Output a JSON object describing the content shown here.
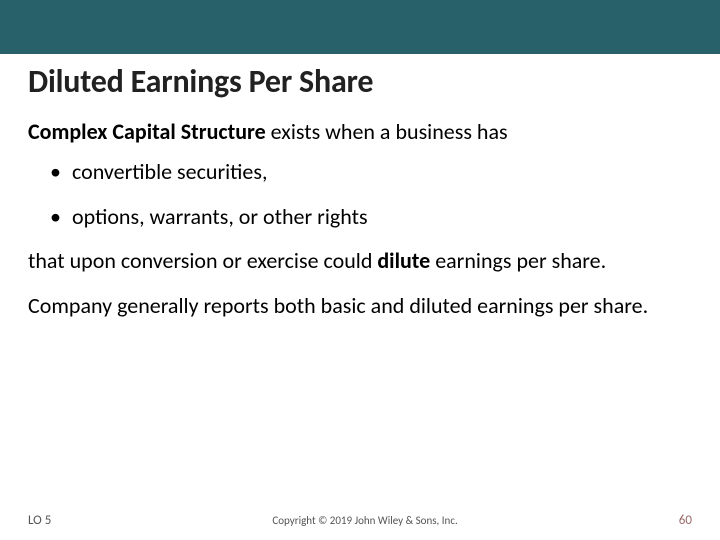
{
  "colors": {
    "topbar": "#28616a",
    "background": "#ffffff",
    "title": "#212121",
    "body_text": "#000000",
    "footer_text": "#555555",
    "pageno_text": "#9a6a6a"
  },
  "typography": {
    "title_pt": 32,
    "body_pt": 22,
    "footer_pt": 11,
    "font_family": "Calibri"
  },
  "title": "Diluted Earnings Per Share",
  "intro_lead_bold": "Complex Capital Structure",
  "intro_rest": " exists when a business has",
  "bullets": [
    "convertible securities,",
    "options, warrants, or other rights"
  ],
  "para1_pre": "that upon conversion or exercise could ",
  "para1_bold": "dilute",
  "para1_post": " earnings per share.",
  "para2": "Company generally reports both basic and diluted earnings per share.",
  "footer": {
    "lo": "LO 5",
    "copyright": "Copyright © 2019 John Wiley & Sons, Inc.",
    "pageno": "60"
  }
}
